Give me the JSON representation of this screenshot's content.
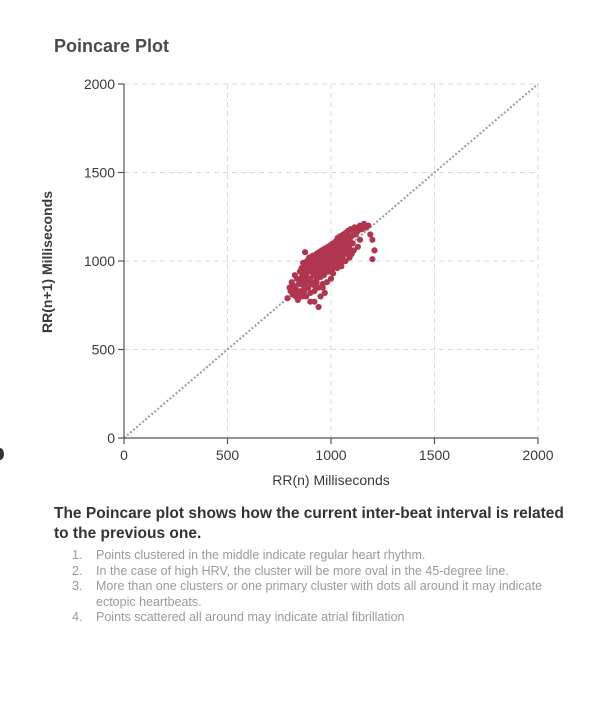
{
  "chart_data": {
    "type": "scatter",
    "title": "Poincare Plot",
    "xlabel": "RR(n) Milliseconds",
    "ylabel": "RR(n+1) Milliseconds",
    "xlim": [
      0,
      2000
    ],
    "ylim": [
      0,
      2000
    ],
    "xticks": [
      0,
      500,
      1000,
      1500,
      2000
    ],
    "yticks": [
      0,
      500,
      1000,
      1500,
      2000
    ],
    "grid": "dashed",
    "identity_line": true,
    "point_color": "#b0364f",
    "points": [
      [
        790,
        790
      ],
      [
        800,
        850
      ],
      [
        805,
        830
      ],
      [
        810,
        880
      ],
      [
        815,
        810
      ],
      [
        820,
        860
      ],
      [
        825,
        920
      ],
      [
        830,
        840
      ],
      [
        835,
        900
      ],
      [
        840,
        820
      ],
      [
        845,
        870
      ],
      [
        850,
        940
      ],
      [
        852,
        890
      ],
      [
        855,
        830
      ],
      [
        858,
        960
      ],
      [
        860,
        910
      ],
      [
        862,
        870
      ],
      [
        865,
        990
      ],
      [
        868,
        940
      ],
      [
        870,
        860
      ],
      [
        872,
        900
      ],
      [
        875,
        1050
      ],
      [
        878,
        960
      ],
      [
        880,
        920
      ],
      [
        882,
        880
      ],
      [
        885,
        1000
      ],
      [
        888,
        940
      ],
      [
        890,
        980
      ],
      [
        892,
        860
      ],
      [
        895,
        1020
      ],
      [
        898,
        960
      ],
      [
        900,
        900
      ],
      [
        902,
        940
      ],
      [
        905,
        1000
      ],
      [
        908,
        880
      ],
      [
        910,
        960
      ],
      [
        912,
        1030
      ],
      [
        915,
        920
      ],
      [
        918,
        980
      ],
      [
        920,
        1000
      ],
      [
        922,
        860
      ],
      [
        925,
        950
      ],
      [
        928,
        1010
      ],
      [
        930,
        1040
      ],
      [
        932,
        900
      ],
      [
        935,
        970
      ],
      [
        938,
        1000
      ],
      [
        940,
        930
      ],
      [
        942,
        1050
      ],
      [
        945,
        980
      ],
      [
        948,
        1020
      ],
      [
        950,
        940
      ],
      [
        952,
        1000
      ],
      [
        955,
        1060
      ],
      [
        958,
        960
      ],
      [
        960,
        990
      ],
      [
        962,
        1030
      ],
      [
        965,
        920
      ],
      [
        968,
        1000
      ],
      [
        970,
        1070
      ],
      [
        972,
        950
      ],
      [
        975,
        1010
      ],
      [
        978,
        1040
      ],
      [
        980,
        980
      ],
      [
        982,
        1000
      ],
      [
        985,
        1080
      ],
      [
        988,
        1020
      ],
      [
        990,
        960
      ],
      [
        992,
        1050
      ],
      [
        995,
        1000
      ],
      [
        998,
        1090
      ],
      [
        1000,
        1030
      ],
      [
        1002,
        980
      ],
      [
        1005,
        1060
      ],
      [
        1008,
        1010
      ],
      [
        1010,
        1100
      ],
      [
        1012,
        1040
      ],
      [
        1015,
        990
      ],
      [
        1018,
        1070
      ],
      [
        1020,
        1020
      ],
      [
        1022,
        1110
      ],
      [
        1025,
        1050
      ],
      [
        1028,
        1000
      ],
      [
        1030,
        1080
      ],
      [
        1032,
        1130
      ],
      [
        1035,
        1060
      ],
      [
        1038,
        1020
      ],
      [
        1040,
        1100
      ],
      [
        1042,
        1050
      ],
      [
        1045,
        1140
      ],
      [
        1048,
        1090
      ],
      [
        1050,
        1030
      ],
      [
        1052,
        1070
      ],
      [
        1055,
        1120
      ],
      [
        1058,
        1010
      ],
      [
        1060,
        1150
      ],
      [
        1062,
        1100
      ],
      [
        1065,
        1060
      ],
      [
        1068,
        1130
      ],
      [
        1070,
        1080
      ],
      [
        1072,
        1160
      ],
      [
        1075,
        1120
      ],
      [
        1078,
        1050
      ],
      [
        1080,
        1100
      ],
      [
        1082,
        1170
      ],
      [
        1085,
        1140
      ],
      [
        1088,
        1080
      ],
      [
        1090,
        1120
      ],
      [
        1095,
        1180
      ],
      [
        1100,
        1140
      ],
      [
        1105,
        1100
      ],
      [
        1110,
        1160
      ],
      [
        1115,
        1190
      ],
      [
        1120,
        1150
      ],
      [
        1130,
        1170
      ],
      [
        1140,
        1200
      ],
      [
        1150,
        1180
      ],
      [
        1160,
        1210
      ],
      [
        1170,
        1190
      ],
      [
        1180,
        1200
      ],
      [
        1190,
        1150
      ],
      [
        1200,
        1010
      ],
      [
        1200,
        1120
      ],
      [
        1210,
        1060
      ],
      [
        960,
        850
      ],
      [
        980,
        880
      ],
      [
        1000,
        900
      ],
      [
        1010,
        930
      ],
      [
        1030,
        960
      ],
      [
        1050,
        970
      ],
      [
        1070,
        1000
      ],
      [
        1090,
        1020
      ],
      [
        1100,
        1040
      ],
      [
        1110,
        1060
      ],
      [
        1130,
        1080
      ],
      [
        1140,
        1120
      ],
      [
        900,
        820
      ],
      [
        920,
        830
      ],
      [
        940,
        850
      ],
      [
        960,
        870
      ],
      [
        880,
        800
      ],
      [
        900,
        770
      ],
      [
        920,
        770
      ],
      [
        940,
        740
      ],
      [
        950,
        800
      ],
      [
        970,
        820
      ],
      [
        860,
        800
      ],
      [
        840,
        780
      ],
      [
        830,
        800
      ],
      [
        850,
        810
      ],
      [
        870,
        830
      ],
      [
        890,
        850
      ],
      [
        910,
        870
      ],
      [
        930,
        880
      ],
      [
        950,
        910
      ],
      [
        970,
        930
      ],
      [
        990,
        940
      ],
      [
        1010,
        960
      ],
      [
        1030,
        990
      ],
      [
        1050,
        1010
      ],
      [
        1070,
        1040
      ],
      [
        1090,
        1060
      ],
      [
        1060,
        1000
      ],
      [
        1040,
        1000
      ]
    ]
  },
  "description": {
    "heading": "The Poincare plot shows how the current inter-beat interval is related to the previous one.",
    "items": [
      {
        "num": "1.",
        "text": "Points clustered in the middle indicate regular heart rhythm."
      },
      {
        "num": "2.",
        "text": "In the case of high HRV, the cluster will be more oval in the 45-degree line."
      },
      {
        "num": "3.",
        "text": "More than one clusters or one primary cluster with dots all around it may indicate ectopic heartbeats."
      },
      {
        "num": "4.",
        "text": "Points scattered all around may indicate atrial fibrillation"
      }
    ]
  }
}
